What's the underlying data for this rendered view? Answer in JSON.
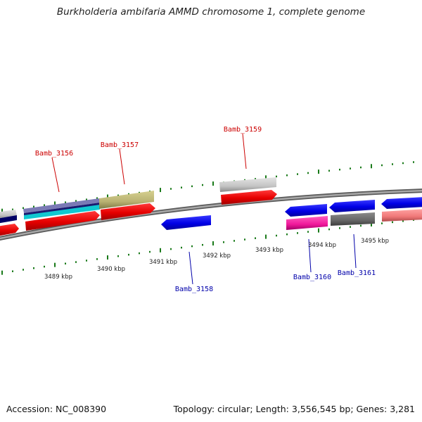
{
  "title": "Burkholderia ambifaria AMMD chromosome 1, complete genome",
  "footer": {
    "accession": "Accession: NC_008390",
    "summary": "Topology: circular; Length: 3,556,545 bp; Genes: 3,281"
  },
  "scale_labels": [
    "3489 kbp",
    "3490 kbp",
    "3491 kbp",
    "3492 kbp",
    "3493 kbp",
    "3494 kbp",
    "3495 kbp"
  ],
  "gene_labels": [
    {
      "text": "Bamb_3156",
      "strand": "forward"
    },
    {
      "text": "Bamb_3157",
      "strand": "forward"
    },
    {
      "text": "Bamb_3159",
      "strand": "forward"
    },
    {
      "text": "Bamb_3158",
      "strand": "reverse"
    },
    {
      "text": "Bamb_3160",
      "strand": "reverse"
    },
    {
      "text": "Bamb_3161",
      "strand": "reverse"
    }
  ],
  "colors": {
    "forward_label": "#cc0000",
    "reverse_label": "#0000aa",
    "tick": "#1a7a1a",
    "backbone": "#808080"
  }
}
